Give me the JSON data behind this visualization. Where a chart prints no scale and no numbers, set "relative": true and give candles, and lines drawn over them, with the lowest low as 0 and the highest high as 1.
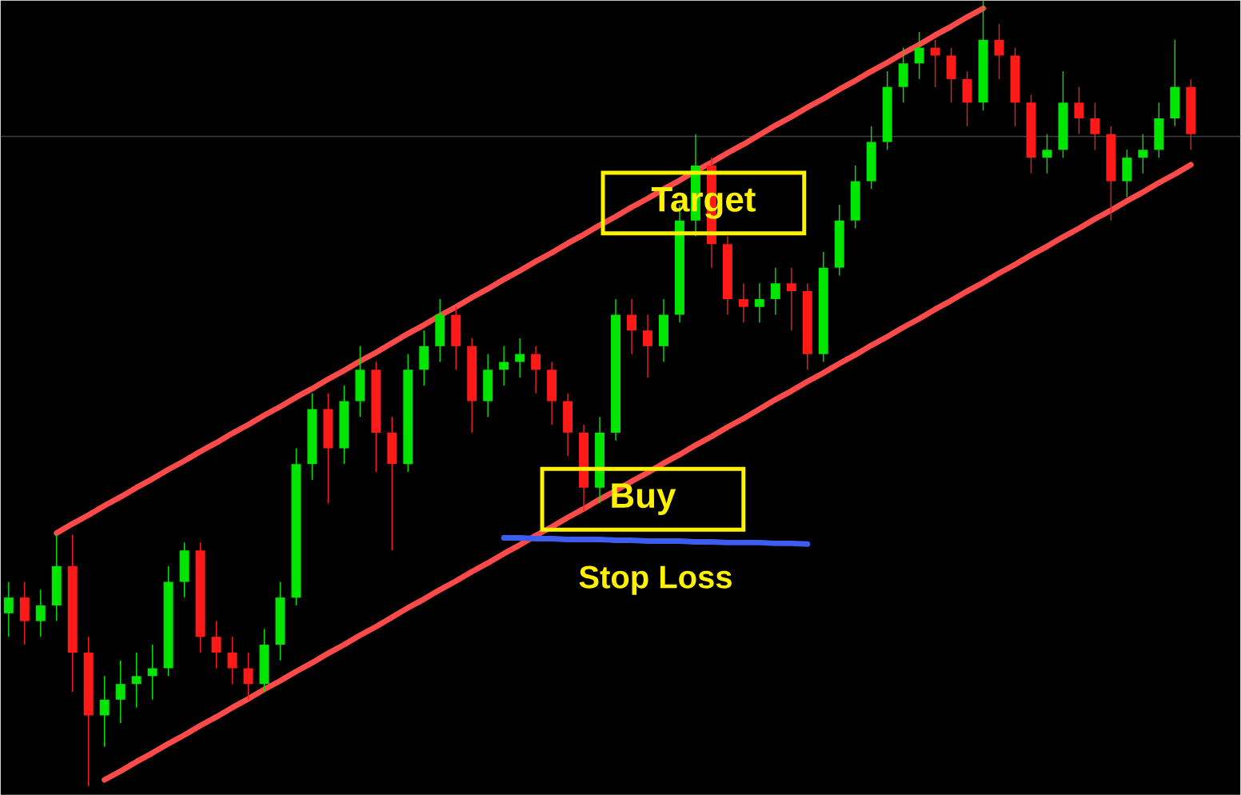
{
  "chart_data": {
    "type": "candlestick",
    "relative": true,
    "tick_labels": false,
    "categories": [
      null,
      null,
      null,
      null,
      null,
      null,
      null,
      null,
      null,
      null,
      null,
      null,
      null,
      null,
      null,
      null,
      null,
      null,
      null,
      null,
      null,
      null,
      null,
      null,
      null,
      null,
      null,
      null,
      null,
      null,
      null,
      null,
      null,
      null,
      null,
      null,
      null,
      null,
      null,
      null,
      null,
      null,
      null,
      null,
      null,
      null,
      null,
      null,
      null,
      null,
      null,
      null,
      null,
      null,
      null,
      null,
      null,
      null,
      null,
      null,
      null,
      null,
      null,
      null,
      null,
      null,
      null,
      null,
      null,
      null,
      null,
      null,
      null,
      null,
      null
    ],
    "ohlc": [
      [
        0.22,
        0.26,
        0.19,
        0.24
      ],
      [
        0.24,
        0.26,
        0.18,
        0.21
      ],
      [
        0.21,
        0.25,
        0.19,
        0.23
      ],
      [
        0.23,
        0.32,
        0.21,
        0.28
      ],
      [
        0.28,
        0.32,
        0.12,
        0.17
      ],
      [
        0.17,
        0.19,
        0.0,
        0.09
      ],
      [
        0.09,
        0.14,
        0.05,
        0.11
      ],
      [
        0.11,
        0.16,
        0.08,
        0.13
      ],
      [
        0.13,
        0.17,
        0.1,
        0.14
      ],
      [
        0.14,
        0.18,
        0.11,
        0.15
      ],
      [
        0.15,
        0.28,
        0.14,
        0.26
      ],
      [
        0.26,
        0.31,
        0.24,
        0.3
      ],
      [
        0.3,
        0.31,
        0.17,
        0.19
      ],
      [
        0.19,
        0.21,
        0.15,
        0.17
      ],
      [
        0.17,
        0.19,
        0.13,
        0.15
      ],
      [
        0.15,
        0.17,
        0.11,
        0.13
      ],
      [
        0.13,
        0.2,
        0.12,
        0.18
      ],
      [
        0.18,
        0.26,
        0.16,
        0.24
      ],
      [
        0.24,
        0.43,
        0.23,
        0.41
      ],
      [
        0.41,
        0.5,
        0.39,
        0.48
      ],
      [
        0.48,
        0.5,
        0.36,
        0.43
      ],
      [
        0.43,
        0.51,
        0.41,
        0.49
      ],
      [
        0.49,
        0.56,
        0.47,
        0.53
      ],
      [
        0.53,
        0.54,
        0.4,
        0.45
      ],
      [
        0.45,
        0.47,
        0.3,
        0.41
      ],
      [
        0.41,
        0.55,
        0.4,
        0.53
      ],
      [
        0.53,
        0.58,
        0.51,
        0.56
      ],
      [
        0.56,
        0.62,
        0.54,
        0.6
      ],
      [
        0.6,
        0.61,
        0.53,
        0.56
      ],
      [
        0.56,
        0.57,
        0.45,
        0.49
      ],
      [
        0.49,
        0.55,
        0.47,
        0.53
      ],
      [
        0.53,
        0.56,
        0.51,
        0.54
      ],
      [
        0.54,
        0.57,
        0.52,
        0.55
      ],
      [
        0.55,
        0.56,
        0.5,
        0.53
      ],
      [
        0.53,
        0.54,
        0.46,
        0.49
      ],
      [
        0.49,
        0.5,
        0.42,
        0.45
      ],
      [
        0.45,
        0.46,
        0.35,
        0.38
      ],
      [
        0.38,
        0.47,
        0.36,
        0.45
      ],
      [
        0.45,
        0.62,
        0.44,
        0.6
      ],
      [
        0.6,
        0.62,
        0.55,
        0.58
      ],
      [
        0.58,
        0.6,
        0.52,
        0.56
      ],
      [
        0.56,
        0.62,
        0.54,
        0.6
      ],
      [
        0.6,
        0.74,
        0.59,
        0.72
      ],
      [
        0.72,
        0.83,
        0.7,
        0.79
      ],
      [
        0.79,
        0.8,
        0.66,
        0.69
      ],
      [
        0.69,
        0.7,
        0.6,
        0.62
      ],
      [
        0.62,
        0.64,
        0.59,
        0.61
      ],
      [
        0.61,
        0.64,
        0.59,
        0.62
      ],
      [
        0.62,
        0.66,
        0.6,
        0.64
      ],
      [
        0.64,
        0.66,
        0.58,
        0.63
      ],
      [
        0.63,
        0.64,
        0.53,
        0.55
      ],
      [
        0.55,
        0.68,
        0.54,
        0.66
      ],
      [
        0.66,
        0.74,
        0.65,
        0.72
      ],
      [
        0.72,
        0.79,
        0.71,
        0.77
      ],
      [
        0.77,
        0.84,
        0.76,
        0.82
      ],
      [
        0.82,
        0.91,
        0.81,
        0.89
      ],
      [
        0.89,
        0.94,
        0.87,
        0.92
      ],
      [
        0.92,
        0.96,
        0.9,
        0.94
      ],
      [
        0.94,
        0.95,
        0.89,
        0.93
      ],
      [
        0.93,
        0.94,
        0.87,
        0.9
      ],
      [
        0.9,
        0.91,
        0.84,
        0.87
      ],
      [
        0.87,
        1.0,
        0.86,
        0.95
      ],
      [
        0.95,
        0.97,
        0.9,
        0.93
      ],
      [
        0.93,
        0.94,
        0.84,
        0.87
      ],
      [
        0.87,
        0.88,
        0.78,
        0.8
      ],
      [
        0.8,
        0.83,
        0.78,
        0.81
      ],
      [
        0.81,
        0.91,
        0.8,
        0.87
      ],
      [
        0.87,
        0.89,
        0.83,
        0.85
      ],
      [
        0.85,
        0.87,
        0.81,
        0.83
      ],
      [
        0.83,
        0.84,
        0.72,
        0.77
      ],
      [
        0.77,
        0.81,
        0.75,
        0.8
      ],
      [
        0.8,
        0.83,
        0.78,
        0.81
      ],
      [
        0.81,
        0.87,
        0.8,
        0.85
      ],
      [
        0.85,
        0.95,
        0.84,
        0.89
      ],
      [
        0.89,
        0.9,
        0.81,
        0.83
      ]
    ],
    "colors": [
      "#00e600",
      "#ff1a1a",
      "#00e600",
      "#00e600",
      "#ff1a1a",
      "#ff1a1a",
      "#00e600",
      "#00e600",
      "#00e600",
      "#00e600",
      "#00e600",
      "#00e600",
      "#ff1a1a",
      "#ff1a1a",
      "#ff1a1a",
      "#ff1a1a",
      "#00e600",
      "#00e600",
      "#00e600",
      "#00e600",
      "#ff1a1a",
      "#00e600",
      "#00e600",
      "#ff1a1a",
      "#ff1a1a",
      "#00e600",
      "#00e600",
      "#00e600",
      "#ff1a1a",
      "#ff1a1a",
      "#00e600",
      "#00e600",
      "#00e600",
      "#ff1a1a",
      "#ff1a1a",
      "#ff1a1a",
      "#ff1a1a",
      "#00e600",
      "#00e600",
      "#ff1a1a",
      "#ff1a1a",
      "#00e600",
      "#00e600",
      "#00e600",
      "#ff1a1a",
      "#ff1a1a",
      "#ff1a1a",
      "#00e600",
      "#00e600",
      "#ff1a1a",
      "#ff1a1a",
      "#00e600",
      "#00e600",
      "#00e600",
      "#00e600",
      "#00e600",
      "#00e600",
      "#00e600",
      "#ff1a1a",
      "#ff1a1a",
      "#ff1a1a",
      "#00e600",
      "#ff1a1a",
      "#ff1a1a",
      "#ff1a1a",
      "#00e600",
      "#00e600",
      "#ff1a1a",
      "#ff1a1a",
      "#ff1a1a",
      "#00e600",
      "#00e600",
      "#00e600",
      "#00e600",
      "#ff1a1a"
    ],
    "series": [
      {
        "type": "line",
        "color": "#ff4a4a",
        "values": [
          null,
          null,
          null,
          0.322,
          0.334,
          0.345,
          0.357,
          0.368,
          0.38,
          0.391,
          0.403,
          0.414,
          0.426,
          0.437,
          0.449,
          0.46,
          0.472,
          0.483,
          0.495,
          0.506,
          0.518,
          0.529,
          0.541,
          0.552,
          0.564,
          0.576,
          0.587,
          0.599,
          0.61,
          0.622,
          0.633,
          0.645,
          0.656,
          0.668,
          0.679,
          0.691,
          0.702,
          0.714,
          0.725,
          0.737,
          0.748,
          0.76,
          0.771,
          0.783,
          0.794,
          0.806,
          0.817,
          0.829,
          0.841,
          0.852,
          0.864,
          0.875,
          0.887,
          0.898,
          0.91,
          0.921,
          0.933,
          0.944,
          0.956,
          0.967,
          0.979,
          0.99,
          null,
          null,
          null,
          null,
          null,
          null,
          null,
          null,
          null,
          null,
          null,
          null,
          null
        ]
      },
      {
        "type": "line",
        "color": "#ff4a4a",
        "values": [
          null,
          null,
          null,
          null,
          null,
          null,
          0.008,
          0.019,
          0.031,
          0.042,
          0.054,
          0.065,
          0.077,
          0.088,
          0.1,
          0.111,
          0.123,
          0.134,
          0.146,
          0.157,
          0.169,
          0.18,
          0.192,
          0.203,
          0.215,
          0.227,
          0.238,
          0.25,
          0.261,
          0.273,
          0.284,
          0.296,
          0.307,
          0.319,
          0.33,
          0.342,
          0.353,
          0.365,
          0.376,
          0.388,
          0.399,
          0.411,
          0.422,
          0.434,
          0.445,
          0.457,
          0.468,
          0.48,
          0.492,
          0.503,
          0.515,
          0.526,
          0.538,
          0.549,
          0.561,
          0.572,
          0.584,
          0.595,
          0.607,
          0.618,
          0.63,
          0.641,
          0.653,
          0.664,
          0.676,
          0.687,
          0.699,
          0.71,
          0.722,
          0.733,
          0.745,
          0.756,
          0.768,
          0.779,
          0.791
        ]
      },
      {
        "type": "line",
        "name": "Stop Loss",
        "color": "#3d5cf0",
        "values": [
          null,
          null,
          null,
          null,
          null,
          null,
          null,
          null,
          null,
          null,
          null,
          null,
          null,
          null,
          null,
          null,
          null,
          null,
          null,
          null,
          null,
          null,
          null,
          null,
          null,
          null,
          null,
          null,
          null,
          null,
          null,
          0.316,
          0.316,
          0.315,
          0.315,
          0.314,
          0.314,
          0.314,
          0.313,
          0.313,
          0.312,
          0.312,
          0.312,
          0.311,
          0.311,
          0.31,
          0.31,
          0.31,
          0.309,
          0.309,
          0.308,
          null,
          null,
          null,
          null,
          null,
          null,
          null,
          null,
          null,
          null,
          null,
          null,
          null,
          null,
          null,
          null,
          null,
          null,
          null,
          null,
          null,
          null,
          null,
          null
        ]
      }
    ],
    "ref_lines": [
      {
        "axis": "y",
        "value": 0.827,
        "label": null,
        "color": "#3a3a3a"
      }
    ],
    "annotations": [
      "Target",
      "Buy"
    ]
  }
}
